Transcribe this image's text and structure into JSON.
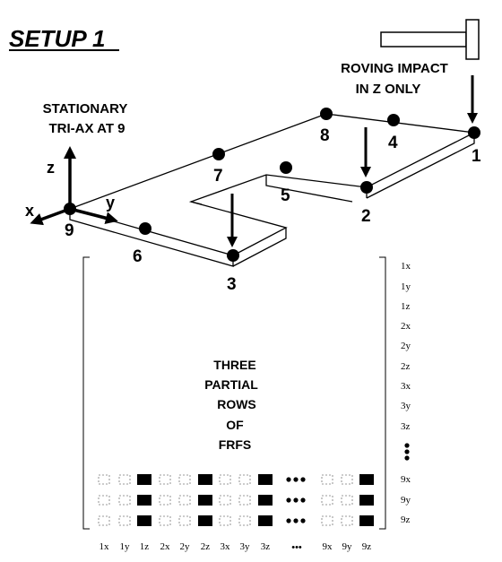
{
  "title": "SETUP 1",
  "stationary_label": [
    "STATIONARY",
    "TRI-AX AT 9"
  ],
  "roving_label": [
    "ROVING IMPACT",
    "IN Z ONLY"
  ],
  "axes": {
    "z": "z",
    "x": "x",
    "y": "y"
  },
  "points": [
    "1",
    "2",
    "3",
    "4",
    "5",
    "6",
    "7",
    "8",
    "9"
  ],
  "matrix_text": [
    "THREE",
    "PARTIAL",
    "ROWS",
    "OF",
    "FRFS"
  ],
  "row_labels": [
    "1x",
    "1y",
    "1z",
    "2x",
    "2y",
    "2z",
    "3x",
    "3y",
    "3z",
    "9x",
    "9y",
    "9z"
  ],
  "col_labels": [
    "1x",
    "1y",
    "1z",
    "2x",
    "2y",
    "2z",
    "3x",
    "3y",
    "3z",
    "9x",
    "9y",
    "9z"
  ],
  "ellipsis": "•••",
  "colors": {
    "ink": "#000000",
    "paper": "#ffffff"
  }
}
